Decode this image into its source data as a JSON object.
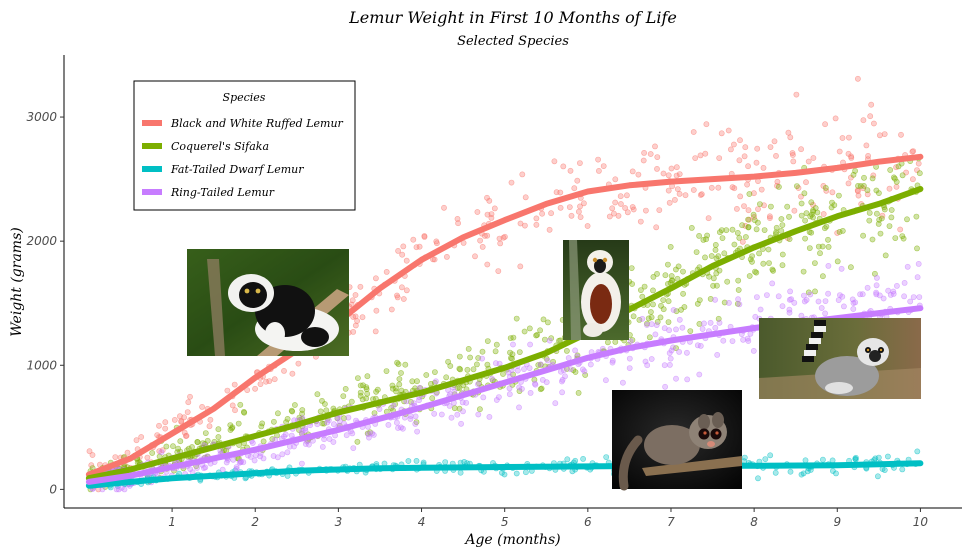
{
  "chart_data": {
    "type": "scatter",
    "title": "Lemur Weight in First 10 Months of Life",
    "subtitle": "Selected Species",
    "xlabel": "Age (months)",
    "ylabel": "Weight (grams)",
    "xlim": [
      -0.3,
      10.5
    ],
    "ylim": [
      -150,
      3500
    ],
    "x_ticks": [
      1,
      2,
      3,
      4,
      5,
      6,
      7,
      8,
      9,
      10
    ],
    "y_ticks": [
      0,
      1000,
      2000,
      3000
    ],
    "grid": false,
    "legend": {
      "title": "Species",
      "placement": "top-left"
    },
    "series": [
      {
        "name": "Black and White Ruffed Lemur",
        "color": "#F8766D",
        "trend": [
          [
            0,
            120
          ],
          [
            0.5,
            250
          ],
          [
            1,
            450
          ],
          [
            1.5,
            650
          ],
          [
            2,
            900
          ],
          [
            2.5,
            1120
          ],
          [
            3,
            1350
          ],
          [
            3.5,
            1620
          ],
          [
            4,
            1850
          ],
          [
            4.5,
            2030
          ],
          [
            5,
            2170
          ],
          [
            5.5,
            2300
          ],
          [
            6,
            2400
          ],
          [
            6.5,
            2450
          ],
          [
            7,
            2480
          ],
          [
            7.5,
            2500
          ],
          [
            8,
            2520
          ],
          [
            8.5,
            2550
          ],
          [
            9,
            2590
          ],
          [
            9.5,
            2640
          ],
          [
            10,
            2680
          ]
        ],
        "spread": 170,
        "point_count": 380
      },
      {
        "name": "Coquerel's Sifaka",
        "color": "#7CAE00",
        "trend": [
          [
            0,
            90
          ],
          [
            0.5,
            160
          ],
          [
            1,
            250
          ],
          [
            1.5,
            340
          ],
          [
            2,
            430
          ],
          [
            2.5,
            520
          ],
          [
            3,
            620
          ],
          [
            3.5,
            700
          ],
          [
            4,
            780
          ],
          [
            4.5,
            880
          ],
          [
            5,
            980
          ],
          [
            5.5,
            1100
          ],
          [
            6,
            1260
          ],
          [
            6.5,
            1450
          ],
          [
            7,
            1620
          ],
          [
            7.5,
            1800
          ],
          [
            8,
            1950
          ],
          [
            8.5,
            2080
          ],
          [
            9,
            2200
          ],
          [
            9.5,
            2300
          ],
          [
            10,
            2420
          ]
        ],
        "spread": 150,
        "point_count": 650
      },
      {
        "name": "Fat-Tailed Dwarf Lemur",
        "color": "#00BFC4",
        "trend": [
          [
            0,
            30
          ],
          [
            0.5,
            60
          ],
          [
            1,
            90
          ],
          [
            1.5,
            110
          ],
          [
            2,
            130
          ],
          [
            2.5,
            150
          ],
          [
            3,
            160
          ],
          [
            3.5,
            170
          ],
          [
            4,
            175
          ],
          [
            5,
            180
          ],
          [
            6,
            185
          ],
          [
            7,
            190
          ],
          [
            8,
            190
          ],
          [
            9,
            195
          ],
          [
            10,
            210
          ]
        ],
        "spread": 30,
        "point_count": 300
      },
      {
        "name": "Ring-Tailed Lemur",
        "color": "#C77CFF",
        "trend": [
          [
            0,
            60
          ],
          [
            0.5,
            110
          ],
          [
            1,
            180
          ],
          [
            1.5,
            250
          ],
          [
            2,
            320
          ],
          [
            2.5,
            400
          ],
          [
            3,
            480
          ],
          [
            3.5,
            570
          ],
          [
            4,
            660
          ],
          [
            4.5,
            760
          ],
          [
            5,
            860
          ],
          [
            5.5,
            960
          ],
          [
            6,
            1060
          ],
          [
            6.5,
            1140
          ],
          [
            7,
            1200
          ],
          [
            7.5,
            1250
          ],
          [
            8,
            1300
          ],
          [
            8.5,
            1340
          ],
          [
            9,
            1380
          ],
          [
            9.5,
            1420
          ],
          [
            10,
            1460
          ]
        ],
        "spread": 120,
        "point_count": 520
      }
    ]
  },
  "photos": [
    {
      "icon": "ruffed-lemur-photo"
    },
    {
      "icon": "sifaka-photo"
    },
    {
      "icon": "ring-tailed-lemur-photo"
    },
    {
      "icon": "dwarf-lemur-photo"
    }
  ]
}
